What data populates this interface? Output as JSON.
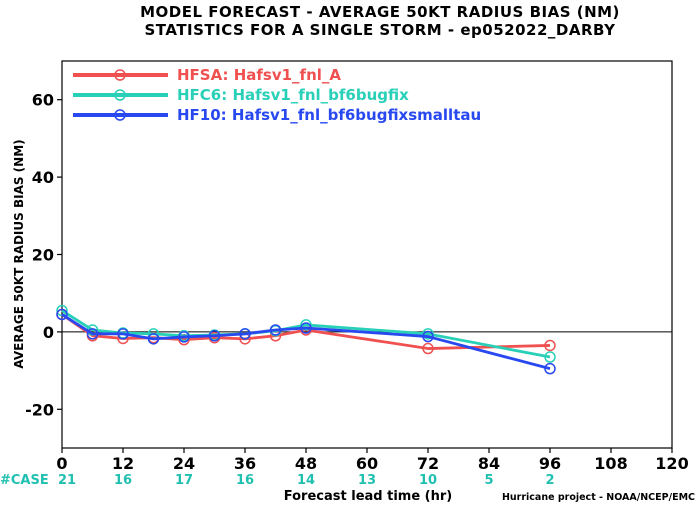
{
  "chart_data": {
    "type": "line",
    "title": "MODEL FORECAST - AVERAGE 50KT RADIUS BIAS (NM)",
    "subtitle": "STATISTICS FOR A SINGLE STORM - ep052022_DARBY",
    "xlabel": "Forecast lead time (hr)",
    "ylabel": "AVERAGE 50KT RADIUS BIAS (NM)",
    "xlim": [
      0,
      120
    ],
    "ylim": [
      -30,
      70
    ],
    "xticks": [
      0,
      12,
      24,
      36,
      48,
      60,
      72,
      84,
      96,
      108,
      120
    ],
    "yticks": [
      -20,
      0,
      20,
      40,
      60
    ],
    "zero_line": true,
    "grid": false,
    "legend_position": "top-left",
    "series": [
      {
        "name": "HFSA: Hafsv1_fnl_A",
        "color": "#f05050",
        "x": [
          0,
          6,
          12,
          18,
          24,
          30,
          36,
          42,
          48,
          72,
          96
        ],
        "y": [
          4.5,
          -1,
          -1.7,
          -1.5,
          -2,
          -1.5,
          -1.8,
          -1,
          0.5,
          -4.3,
          -3.5
        ]
      },
      {
        "name": "HFC6: Hafsv1_fnl_bf6bugfix",
        "color": "#28d0b8",
        "x": [
          0,
          6,
          12,
          18,
          24,
          30,
          36,
          42,
          48,
          72,
          96
        ],
        "y": [
          5.5,
          0.5,
          -0.3,
          -0.5,
          -1,
          -0.8,
          -0.5,
          0.3,
          1.8,
          -0.5,
          -6.5
        ]
      },
      {
        "name": "HF10: Hafsv1_fnl_bf6bugfixsmalltau",
        "color": "#2848f0",
        "x": [
          0,
          6,
          12,
          18,
          24,
          30,
          36,
          42,
          48,
          72,
          96
        ],
        "y": [
          4.5,
          -0.5,
          -0.5,
          -1.8,
          -1.3,
          -1,
          -0.5,
          0.5,
          1,
          -1.2,
          -9.5
        ]
      }
    ],
    "case_label": "#CASE",
    "case_counts": [
      {
        "x": 0,
        "n": "21"
      },
      {
        "x": 12,
        "n": "16"
      },
      {
        "x": 24,
        "n": "17"
      },
      {
        "x": 36,
        "n": "16"
      },
      {
        "x": 48,
        "n": "14"
      },
      {
        "x": 60,
        "n": "13"
      },
      {
        "x": 72,
        "n": "10"
      },
      {
        "x": 84,
        "n": "5"
      },
      {
        "x": 96,
        "n": "2"
      }
    ],
    "credit": "Hurricane project - NOAA/NCEP/EMC"
  }
}
